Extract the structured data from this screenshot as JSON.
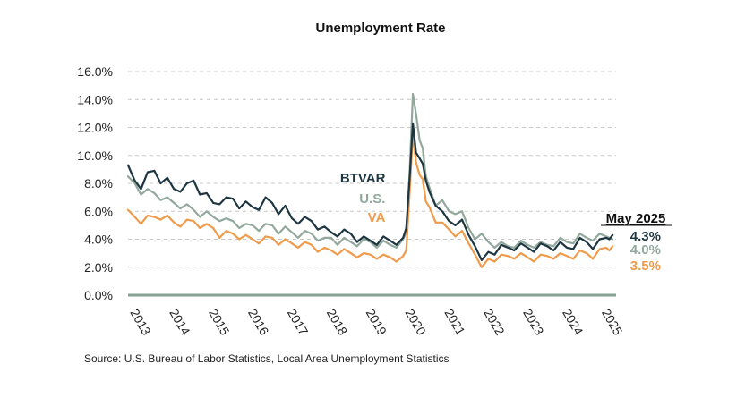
{
  "chart_data": {
    "type": "line",
    "title": "Unemployment Rate",
    "xlabel": "",
    "ylabel": "",
    "ylim": [
      0,
      16
    ],
    "yticks": [
      "0.0%",
      "2.0%",
      "4.0%",
      "6.0%",
      "8.0%",
      "10.0%",
      "12.0%",
      "14.0%",
      "16.0%"
    ],
    "ytick_values": [
      0,
      2,
      4,
      6,
      8,
      10,
      12,
      14,
      16
    ],
    "x_range": [
      2013.0,
      2025.42
    ],
    "xticks": [
      "2013",
      "2014",
      "2015",
      "2016",
      "2017",
      "2018",
      "2019",
      "2020",
      "2021",
      "2022",
      "2023",
      "2024",
      "2025"
    ],
    "xtick_values": [
      2013,
      2014,
      2015,
      2016,
      2017,
      2018,
      2019,
      2020,
      2021,
      2022,
      2023,
      2024,
      2025
    ],
    "grid": "horizontal dashed",
    "legend": "inline labels near April 2020 peak",
    "series": [
      {
        "name": "BTVAR",
        "color": "#1e3641",
        "points": [
          [
            2013.0,
            9.3
          ],
          [
            2013.17,
            8.2
          ],
          [
            2013.33,
            7.6
          ],
          [
            2013.5,
            8.8
          ],
          [
            2013.67,
            8.9
          ],
          [
            2013.83,
            8.0
          ],
          [
            2014.0,
            8.4
          ],
          [
            2014.17,
            7.6
          ],
          [
            2014.33,
            7.4
          ],
          [
            2014.5,
            8.0
          ],
          [
            2014.67,
            8.2
          ],
          [
            2014.83,
            7.2
          ],
          [
            2015.0,
            7.3
          ],
          [
            2015.17,
            6.6
          ],
          [
            2015.33,
            6.5
          ],
          [
            2015.5,
            7.0
          ],
          [
            2015.67,
            6.9
          ],
          [
            2015.83,
            6.2
          ],
          [
            2016.0,
            6.7
          ],
          [
            2016.17,
            6.3
          ],
          [
            2016.33,
            6.1
          ],
          [
            2016.5,
            7.0
          ],
          [
            2016.67,
            6.6
          ],
          [
            2016.83,
            5.8
          ],
          [
            2017.0,
            6.4
          ],
          [
            2017.17,
            5.5
          ],
          [
            2017.33,
            5.1
          ],
          [
            2017.5,
            5.6
          ],
          [
            2017.67,
            5.3
          ],
          [
            2017.83,
            4.7
          ],
          [
            2018.0,
            4.9
          ],
          [
            2018.17,
            4.5
          ],
          [
            2018.33,
            4.2
          ],
          [
            2018.5,
            4.7
          ],
          [
            2018.67,
            4.4
          ],
          [
            2018.83,
            3.8
          ],
          [
            2019.0,
            4.2
          ],
          [
            2019.17,
            3.9
          ],
          [
            2019.33,
            3.6
          ],
          [
            2019.5,
            4.2
          ],
          [
            2019.67,
            3.9
          ],
          [
            2019.83,
            3.6
          ],
          [
            2020.0,
            4.1
          ],
          [
            2020.08,
            4.8
          ],
          [
            2020.17,
            8.5
          ],
          [
            2020.25,
            12.3
          ],
          [
            2020.33,
            10.2
          ],
          [
            2020.42,
            9.8
          ],
          [
            2020.5,
            9.4
          ],
          [
            2020.58,
            8.2
          ],
          [
            2020.67,
            7.4
          ],
          [
            2020.83,
            6.4
          ],
          [
            2021.0,
            6.0
          ],
          [
            2021.17,
            5.3
          ],
          [
            2021.33,
            5.0
          ],
          [
            2021.5,
            5.4
          ],
          [
            2021.67,
            4.3
          ],
          [
            2021.83,
            3.5
          ],
          [
            2022.0,
            2.5
          ],
          [
            2022.17,
            3.1
          ],
          [
            2022.33,
            2.9
          ],
          [
            2022.5,
            3.6
          ],
          [
            2022.67,
            3.4
          ],
          [
            2022.83,
            3.2
          ],
          [
            2023.0,
            3.7
          ],
          [
            2023.17,
            3.4
          ],
          [
            2023.33,
            3.1
          ],
          [
            2023.5,
            3.7
          ],
          [
            2023.67,
            3.5
          ],
          [
            2023.83,
            3.2
          ],
          [
            2024.0,
            3.8
          ],
          [
            2024.17,
            3.4
          ],
          [
            2024.33,
            3.3
          ],
          [
            2024.5,
            4.1
          ],
          [
            2024.67,
            3.8
          ],
          [
            2024.83,
            3.3
          ],
          [
            2025.0,
            4.0
          ],
          [
            2025.17,
            4.1
          ],
          [
            2025.25,
            4.0
          ],
          [
            2025.33,
            4.3
          ]
        ]
      },
      {
        "name": "U.S.",
        "color": "#93a89c",
        "points": [
          [
            2013.0,
            8.5
          ],
          [
            2013.17,
            8.0
          ],
          [
            2013.33,
            7.2
          ],
          [
            2013.5,
            7.6
          ],
          [
            2013.67,
            7.3
          ],
          [
            2013.83,
            6.8
          ],
          [
            2014.0,
            7.0
          ],
          [
            2014.17,
            6.6
          ],
          [
            2014.33,
            6.2
          ],
          [
            2014.5,
            6.5
          ],
          [
            2014.67,
            6.1
          ],
          [
            2014.83,
            5.6
          ],
          [
            2015.0,
            6.0
          ],
          [
            2015.17,
            5.6
          ],
          [
            2015.33,
            5.3
          ],
          [
            2015.5,
            5.5
          ],
          [
            2015.67,
            5.3
          ],
          [
            2015.83,
            4.8
          ],
          [
            2016.0,
            5.1
          ],
          [
            2016.17,
            5.0
          ],
          [
            2016.33,
            4.6
          ],
          [
            2016.5,
            5.1
          ],
          [
            2016.67,
            5.0
          ],
          [
            2016.83,
            4.4
          ],
          [
            2017.0,
            4.9
          ],
          [
            2017.17,
            4.5
          ],
          [
            2017.33,
            4.1
          ],
          [
            2017.5,
            4.6
          ],
          [
            2017.67,
            4.4
          ],
          [
            2017.83,
            3.9
          ],
          [
            2018.0,
            4.1
          ],
          [
            2018.17,
            4.1
          ],
          [
            2018.33,
            3.6
          ],
          [
            2018.5,
            4.1
          ],
          [
            2018.67,
            3.8
          ],
          [
            2018.83,
            3.5
          ],
          [
            2019.0,
            4.0
          ],
          [
            2019.17,
            3.8
          ],
          [
            2019.33,
            3.4
          ],
          [
            2019.5,
            3.9
          ],
          [
            2019.67,
            3.6
          ],
          [
            2019.83,
            3.4
          ],
          [
            2020.0,
            4.0
          ],
          [
            2020.08,
            4.5
          ],
          [
            2020.17,
            9.0
          ],
          [
            2020.25,
            14.4
          ],
          [
            2020.33,
            13.0
          ],
          [
            2020.42,
            11.1
          ],
          [
            2020.5,
            10.5
          ],
          [
            2020.58,
            8.5
          ],
          [
            2020.67,
            7.7
          ],
          [
            2020.83,
            6.4
          ],
          [
            2021.0,
            6.8
          ],
          [
            2021.17,
            6.0
          ],
          [
            2021.33,
            5.8
          ],
          [
            2021.5,
            6.0
          ],
          [
            2021.67,
            4.8
          ],
          [
            2021.83,
            4.0
          ],
          [
            2022.0,
            4.4
          ],
          [
            2022.17,
            3.8
          ],
          [
            2022.33,
            3.4
          ],
          [
            2022.5,
            3.8
          ],
          [
            2022.67,
            3.5
          ],
          [
            2022.83,
            3.4
          ],
          [
            2023.0,
            3.9
          ],
          [
            2023.17,
            3.6
          ],
          [
            2023.33,
            3.4
          ],
          [
            2023.5,
            3.8
          ],
          [
            2023.67,
            3.6
          ],
          [
            2023.83,
            3.5
          ],
          [
            2024.0,
            4.1
          ],
          [
            2024.17,
            3.8
          ],
          [
            2024.33,
            3.7
          ],
          [
            2024.5,
            4.4
          ],
          [
            2024.67,
            4.1
          ],
          [
            2024.83,
            3.9
          ],
          [
            2025.0,
            4.4
          ],
          [
            2025.17,
            4.2
          ],
          [
            2025.25,
            4.1
          ],
          [
            2025.33,
            4.0
          ]
        ]
      },
      {
        "name": "VA",
        "color": "#ef9b4b",
        "points": [
          [
            2013.0,
            6.1
          ],
          [
            2013.17,
            5.6
          ],
          [
            2013.33,
            5.1
          ],
          [
            2013.5,
            5.7
          ],
          [
            2013.67,
            5.6
          ],
          [
            2013.83,
            5.4
          ],
          [
            2014.0,
            5.7
          ],
          [
            2014.17,
            5.2
          ],
          [
            2014.33,
            4.9
          ],
          [
            2014.5,
            5.4
          ],
          [
            2014.67,
            5.3
          ],
          [
            2014.83,
            4.8
          ],
          [
            2015.0,
            5.1
          ],
          [
            2015.17,
            4.8
          ],
          [
            2015.33,
            4.1
          ],
          [
            2015.5,
            4.6
          ],
          [
            2015.67,
            4.4
          ],
          [
            2015.83,
            4.0
          ],
          [
            2016.0,
            4.3
          ],
          [
            2016.17,
            4.0
          ],
          [
            2016.33,
            3.7
          ],
          [
            2016.5,
            4.2
          ],
          [
            2016.67,
            4.1
          ],
          [
            2016.83,
            3.6
          ],
          [
            2017.0,
            4.0
          ],
          [
            2017.17,
            3.7
          ],
          [
            2017.33,
            3.4
          ],
          [
            2017.5,
            3.8
          ],
          [
            2017.67,
            3.6
          ],
          [
            2017.83,
            3.1
          ],
          [
            2018.0,
            3.4
          ],
          [
            2018.17,
            3.2
          ],
          [
            2018.33,
            2.9
          ],
          [
            2018.5,
            3.3
          ],
          [
            2018.67,
            3.0
          ],
          [
            2018.83,
            2.7
          ],
          [
            2019.0,
            3.0
          ],
          [
            2019.17,
            2.9
          ],
          [
            2019.33,
            2.6
          ],
          [
            2019.5,
            2.9
          ],
          [
            2019.67,
            2.7
          ],
          [
            2019.83,
            2.4
          ],
          [
            2020.0,
            2.8
          ],
          [
            2020.08,
            3.2
          ],
          [
            2020.17,
            7.5
          ],
          [
            2020.25,
            11.6
          ],
          [
            2020.33,
            9.5
          ],
          [
            2020.42,
            8.6
          ],
          [
            2020.5,
            8.3
          ],
          [
            2020.58,
            6.7
          ],
          [
            2020.67,
            6.3
          ],
          [
            2020.83,
            5.2
          ],
          [
            2021.0,
            5.2
          ],
          [
            2021.17,
            4.7
          ],
          [
            2021.33,
            4.2
          ],
          [
            2021.5,
            4.6
          ],
          [
            2021.67,
            3.7
          ],
          [
            2021.83,
            2.9
          ],
          [
            2022.0,
            2.0
          ],
          [
            2022.17,
            2.6
          ],
          [
            2022.33,
            2.4
          ],
          [
            2022.5,
            2.9
          ],
          [
            2022.67,
            2.8
          ],
          [
            2022.83,
            2.6
          ],
          [
            2023.0,
            3.0
          ],
          [
            2023.17,
            2.7
          ],
          [
            2023.33,
            2.4
          ],
          [
            2023.5,
            2.9
          ],
          [
            2023.67,
            2.8
          ],
          [
            2023.83,
            2.6
          ],
          [
            2024.0,
            3.0
          ],
          [
            2024.17,
            2.8
          ],
          [
            2024.33,
            2.6
          ],
          [
            2024.5,
            3.2
          ],
          [
            2024.67,
            3.0
          ],
          [
            2024.83,
            2.6
          ],
          [
            2025.0,
            3.3
          ],
          [
            2025.17,
            3.4
          ],
          [
            2025.25,
            3.2
          ],
          [
            2025.33,
            3.5
          ]
        ]
      }
    ],
    "end_label_title": "May 2025",
    "end_values": [
      {
        "series": "BTVAR",
        "text": "4.3%"
      },
      {
        "series": "U.S.",
        "text": "4.0%"
      },
      {
        "series": "VA",
        "text": "3.5%"
      }
    ],
    "source": "Source: U.S. Bureau of Labor Statistics, Local Area Unemployment Statistics"
  }
}
